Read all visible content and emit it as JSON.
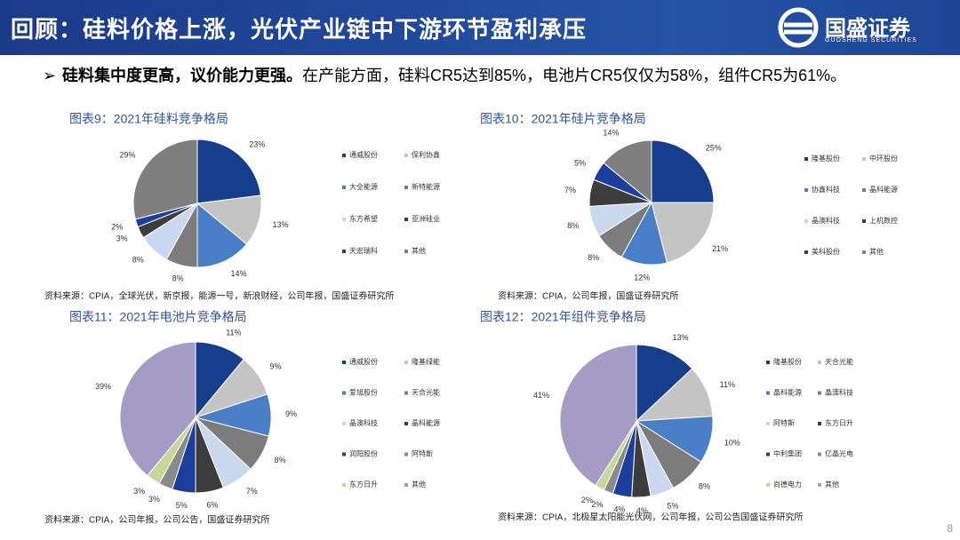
{
  "header": {
    "title": "回顾：硅料价格上涨，光伏产业链中下游环节盈利承压",
    "logo_name": "国盛证券",
    "logo_sub": "GUOSHENG SECURITIES"
  },
  "bullet": {
    "bold": "硅料集中度更高，议价能力更强。",
    "text": "在产能方面，硅料CR5达到85%，电池片CR5仅仅为58%，组件CR5为61%。"
  },
  "page_number": "8",
  "chart_data": [
    {
      "type": "pie",
      "title": "图表9：2021年硅料竞争格局",
      "source": "资料来源：CPIA，全球光伏，新京报，能源一号，新浪财经，公司年报，国盛证券研究所",
      "categories": [
        "通威股份",
        "保利协鑫",
        "大全能源",
        "新特能源",
        "东方希望",
        "亚洲硅业",
        "天宏瑞科",
        "其他"
      ],
      "values": [
        23,
        13,
        14,
        8,
        8,
        3,
        2,
        29
      ],
      "value_labels": [
        "23%",
        "13%",
        "14%",
        "8%",
        "8%",
        "3%",
        "2%",
        "29%"
      ],
      "colors": [
        "#173e8c",
        "#c4c4c4",
        "#4a7fc8",
        "#7c7c7c",
        "#c9d8ef",
        "#3d3d3d",
        "#1c3f9e",
        "#7f7f7f"
      ]
    },
    {
      "type": "pie",
      "title": "图表10：2021年硅片竞争格局",
      "source": "资料来源：CPIA，公司年报，国盛证券研究所",
      "categories": [
        "隆基股份",
        "中环股份",
        "协鑫科技",
        "晶科能源",
        "晶澳科技",
        "上机数控",
        "美科股份",
        "其他"
      ],
      "values": [
        25,
        21,
        12,
        8,
        8,
        7,
        5,
        14
      ],
      "value_labels": [
        "25%",
        "21%",
        "12%",
        "8%",
        "8%",
        "7%",
        "5%",
        "14%"
      ],
      "colors": [
        "#173e8c",
        "#c4c4c4",
        "#4a7fc8",
        "#7c7c7c",
        "#c9d8ef",
        "#3d3d3d",
        "#1c3f9e",
        "#7f7f7f"
      ]
    },
    {
      "type": "pie",
      "title": "图表11：2021年电池片竞争格局",
      "source": "资料来源：CPIA，公司年报，公司公告，国盛证券研究所",
      "categories": [
        "通威股份",
        "隆基绿能",
        "爱旭股份",
        "天合光能",
        "晶澳科技",
        "晶科能源",
        "润阳股份",
        "阿特斯",
        "东方日升",
        "其他"
      ],
      "values": [
        11,
        9,
        9,
        8,
        7,
        6,
        5,
        3,
        3,
        39
      ],
      "value_labels": [
        "11%",
        "9%",
        "9%",
        "8%",
        "7%",
        "6%",
        "5%",
        "3%",
        "3%",
        "39%"
      ],
      "colors": [
        "#173e8c",
        "#c4c4c4",
        "#4a7fc8",
        "#7c7c7c",
        "#c9d8ef",
        "#3d3d3d",
        "#1c3f9e",
        "#8a8a8a",
        "#c5d89c",
        "#a59cc6"
      ]
    },
    {
      "type": "pie",
      "title": "图表12：2021年组件竞争格局",
      "source": "资料来源：CPIA，北极星太阳能光伏网，公司年报，公司公告国盛证券研究所",
      "categories": [
        "隆基股份",
        "天合光能",
        "晶科能源",
        "晶澳科技",
        "阿特斯",
        "东方日升",
        "中利集团",
        "亿晶光电",
        "尚德电力",
        "其他"
      ],
      "values": [
        13,
        11,
        10,
        8,
        5,
        4,
        4,
        2,
        2,
        41
      ],
      "value_labels": [
        "13%",
        "11%",
        "10%",
        "8%",
        "5%",
        "4%",
        "4%",
        "2%",
        "2%",
        "41%"
      ],
      "colors": [
        "#173e8c",
        "#c4c4c4",
        "#4a7fc8",
        "#7c7c7c",
        "#c9d8ef",
        "#3d3d3d",
        "#1c3f9e",
        "#8a8a8a",
        "#c5d89c",
        "#a59cc6"
      ]
    }
  ]
}
